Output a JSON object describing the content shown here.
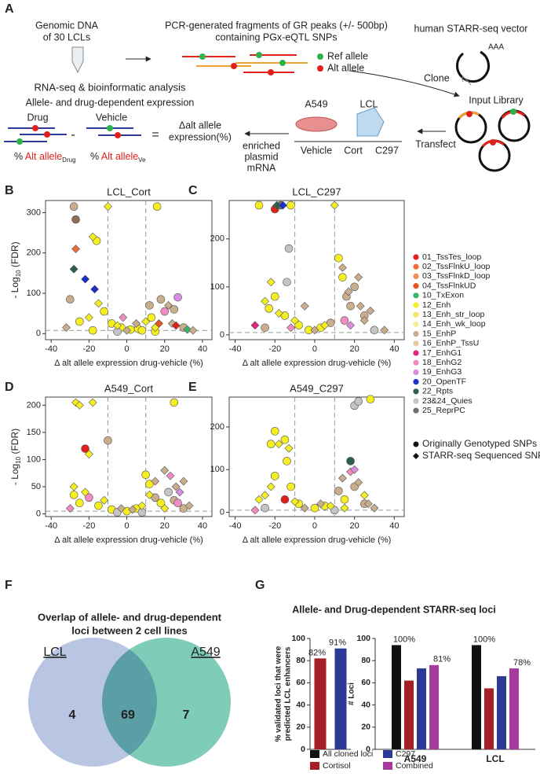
{
  "panel_a": {
    "label": "A",
    "dna": [
      "Genomic DNA",
      "of 30 LCLs"
    ],
    "pcr": [
      "PCR-generated fragments of GR peaks (+/- 500bp)",
      "containing PGx-eQTL SNPs"
    ],
    "vector": "human STARR-seq vector",
    "polya": "AAA",
    "ref": "Ref allele",
    "alt": "Alt allele",
    "clone": "Clone",
    "input": "Input Library",
    "transfect": "Transfect",
    "rnaseq": "RNA-seq & bioinformatic analysis",
    "allele_expr": "Allele- and drug-dependent expression",
    "drug": "Drug",
    "vehicle": "Vehicle",
    "minus": "-",
    "equals": "=",
    "pct": "%",
    "alt_word": "Alt allele",
    "sub_drug": "Drug",
    "sub_ve": "Ve",
    "delta": [
      "Δalt allele",
      "expression(%)"
    ],
    "enriched": [
      "enriched",
      "plasmid",
      "mRNA"
    ],
    "cells": [
      "A549",
      "LCL"
    ],
    "conditions": [
      "Vehicle",
      "Cort",
      "C297"
    ]
  },
  "state_legend": [
    {
      "name": "01_TssTes_loop",
      "color": "#e0201b"
    },
    {
      "name": "02_TssFlnkU_loop",
      "color": "#f26b3a"
    },
    {
      "name": "03_TssFlnkD_loop",
      "color": "#f28c5a"
    },
    {
      "name": "04_TssFlnkUD",
      "color": "#e8521e"
    },
    {
      "name": "10_TxExon",
      "color": "#3cb371"
    },
    {
      "name": "12_Enh",
      "color": "#f5ef22"
    },
    {
      "name": "13_Enh_str_loop",
      "color": "#f5e663"
    },
    {
      "name": "14_Enh_wk_loop",
      "color": "#f8ec9a"
    },
    {
      "name": "15_EnhP",
      "color": "#c9ad8c"
    },
    {
      "name": "16_EnhP_TssU",
      "color": "#e6c9a0"
    },
    {
      "name": "17_EnhG1",
      "color": "#e2247b"
    },
    {
      "name": "18_EnhG2",
      "color": "#f08cc0"
    },
    {
      "name": "19_EnhG3",
      "color": "#d98ce0"
    },
    {
      "name": "20_OpenTF",
      "color": "#1a2fcc"
    },
    {
      "name": "22_Rpts",
      "color": "#2e5e4e"
    },
    {
      "name": "23&24_Quies",
      "color": "#c4c4c4"
    },
    {
      "name": "25_ReprPC",
      "color": "#707070"
    }
  ],
  "marker_legend": [
    {
      "name": "Originally Genotyped SNPs",
      "marker": "circle"
    },
    {
      "name": "STARR-seq Sequenced SNPs",
      "marker": "diamond"
    }
  ],
  "chart_data": [
    {
      "type": "scatter",
      "panel": "B",
      "title": "LCL_Cort",
      "ylabel": [
        "- Log",
        "10",
        " (FDR)"
      ],
      "xlabel": "Δ alt allele expression drug-vehicle (%)",
      "xlim": [
        -43,
        45
      ],
      "xticks": [
        -40,
        -20,
        0,
        20,
        40
      ],
      "ylim": [
        -15,
        330
      ],
      "yticks": [
        0,
        100,
        200,
        300
      ],
      "ref_x": [
        -10,
        10
      ],
      "ref_y": 8,
      "series": [
        {
          "marker": "circle",
          "x": [
            -28,
            -27,
            16,
            -16,
            -30,
            -25,
            -12,
            -8,
            -3,
            2,
            6,
            12,
            13,
            18,
            20,
            25,
            27,
            8,
            -18,
            30,
            -5,
            15
          ],
          "values": [
            315,
            283,
            315,
            230,
            85,
            30,
            55,
            25,
            15,
            10,
            12,
            70,
            40,
            85,
            55,
            60,
            90,
            8,
            8,
            15,
            5,
            5
          ],
          "colors": [
            "#c9ad8c",
            "#8b6f5a",
            "#f5ef22",
            "#f5ef22",
            "#c9ad8c",
            "#f5ef22",
            "#f5ef22",
            "#f5ef22",
            "#f5ef22",
            "#f5ef22",
            "#f5ef22",
            "#c9ad8c",
            "#f5ef22",
            "#c9ad8c",
            "#f08cc0",
            "#c9ad8c",
            "#d98ce0",
            "#f5ef22",
            "#f5ef22",
            "#c9ad8c",
            "#c4c4c4",
            "#f5ef22"
          ]
        },
        {
          "marker": "diamond",
          "x": [
            -10,
            -27,
            -28,
            -22,
            -17,
            -18,
            -15,
            -20,
            -5,
            0,
            5,
            10,
            15,
            17,
            22,
            24,
            26,
            32,
            -32,
            -2,
            35
          ],
          "values": [
            315,
            210,
            160,
            135,
            110,
            240,
            75,
            40,
            20,
            8,
            25,
            30,
            15,
            25,
            70,
            25,
            20,
            10,
            15,
            40,
            8
          ],
          "colors": [
            "#f5ef22",
            "#f26b3a",
            "#2e5e4e",
            "#1a2fcc",
            "#1a2fcc",
            "#f5ef22",
            "#f5ef22",
            "#f5ef22",
            "#f5ef22",
            "#c9ad8c",
            "#c9ad8c",
            "#f5ef22",
            "#f5ef22",
            "#e8521e",
            "#c9ad8c",
            "#c9ad8c",
            "#e0201b",
            "#3cb371",
            "#c9ad8c",
            "#f08cc0",
            "#c9ad8c"
          ]
        }
      ]
    },
    {
      "type": "scatter",
      "panel": "C",
      "title": "LCL_C297",
      "xlabel": "Δ alt allele expression drug-vehicle (%)",
      "xlim": [
        -43,
        45
      ],
      "xticks": [
        -40,
        -20,
        0,
        20,
        40
      ],
      "ylim": [
        -10,
        280
      ],
      "yticks": [
        0,
        100,
        200
      ],
      "ref_x": [
        -10,
        10
      ],
      "ref_y": 5,
      "series": [
        {
          "marker": "circle",
          "x": [
            -28,
            -20,
            -17,
            -12,
            -13,
            -14,
            -20,
            -23,
            -15,
            -8,
            -3,
            3,
            8,
            12,
            14,
            16,
            18,
            20,
            25,
            15,
            -25,
            30
          ],
          "values": [
            270,
            262,
            270,
            270,
            180,
            110,
            80,
            55,
            40,
            20,
            10,
            15,
            25,
            160,
            120,
            80,
            60,
            100,
            40,
            30,
            15,
            10
          ],
          "colors": [
            "#f5ef22",
            "#e0201b",
            "#707070",
            "#f5ef22",
            "#c4c4c4",
            "#c4c4c4",
            "#f5ef22",
            "#f5ef22",
            "#f5ef22",
            "#f5ef22",
            "#f5ef22",
            "#f5ef22",
            "#c9ad8c",
            "#f5ef22",
            "#f5ef22",
            "#c9ad8c",
            "#c9ad8c",
            "#c9ad8c",
            "#c9ad8c",
            "#f08cc0",
            "#c9ad8c",
            "#c4c4c4"
          ]
        },
        {
          "marker": "diamond",
          "x": [
            -19,
            -16,
            10,
            -22,
            -25,
            -18,
            -10,
            -5,
            0,
            5,
            14,
            17,
            22,
            23,
            25,
            18,
            -30,
            35,
            28,
            -12
          ],
          "values": [
            270,
            270,
            270,
            110,
            70,
            45,
            30,
            60,
            10,
            20,
            140,
            90,
            120,
            60,
            30,
            20,
            20,
            10,
            50,
            15
          ],
          "colors": [
            "#2e5e4e",
            "#1a2fcc",
            "#f5ef22",
            "#f5ef22",
            "#f5ef22",
            "#f5ef22",
            "#f5ef22",
            "#c9ad8c",
            "#c9ad8c",
            "#f5ef22",
            "#c9ad8c",
            "#c9ad8c",
            "#c9ad8c",
            "#c9ad8c",
            "#c9ad8c",
            "#d98ce0",
            "#e2247b",
            "#c9ad8c",
            "#c9ad8c",
            "#f08cc0"
          ]
        }
      ]
    },
    {
      "type": "scatter",
      "panel": "D",
      "title": "A549_Cort",
      "ylabel": [
        "- Log",
        "10",
        " (FDR)"
      ],
      "xlabel": "Δ alt allele expression drug-vehicle (%)",
      "xlim": [
        -43,
        45
      ],
      "xticks": [
        -40,
        -20,
        0,
        20,
        40
      ],
      "ylim": [
        -5,
        215
      ],
      "yticks": [
        0,
        50,
        100,
        150,
        200
      ],
      "ref_x": [
        -10,
        10
      ],
      "ref_y": 5,
      "series": [
        {
          "marker": "circle",
          "x": [
            -22,
            -10,
            25,
            -28,
            -25,
            -20,
            -15,
            -8,
            0,
            5,
            10,
            12,
            15,
            18,
            22,
            25,
            27,
            -5,
            30,
            8
          ],
          "values": [
            120,
            135,
            205,
            35,
            20,
            30,
            15,
            8,
            5,
            10,
            72,
            55,
            30,
            20,
            40,
            25,
            20,
            3,
            10,
            3
          ],
          "colors": [
            "#e0201b",
            "#c9ad8c",
            "#f5ef22",
            "#f5ef22",
            "#f5ef22",
            "#f08cc0",
            "#f5ef22",
            "#f5ef22",
            "#f5ef22",
            "#f5ef22",
            "#f5ef22",
            "#f5ef22",
            "#c9ad8c",
            "#f5ef22",
            "#c4c4c4",
            "#c9ad8c",
            "#f08cc0",
            "#c4c4c4",
            "#c9ad8c",
            "#c4c4c4"
          ]
        },
        {
          "marker": "diamond",
          "x": [
            -27,
            -25,
            -18,
            -20,
            -28,
            -22,
            -12,
            -3,
            3,
            8,
            12,
            15,
            20,
            23,
            26,
            28,
            30,
            20,
            -30,
            33
          ],
          "values": [
            205,
            200,
            205,
            110,
            50,
            40,
            25,
            10,
            8,
            15,
            35,
            60,
            80,
            70,
            50,
            40,
            60,
            10,
            10,
            15
          ],
          "colors": [
            "#f5ef22",
            "#f5ef22",
            "#f5ef22",
            "#f5ef22",
            "#f5ef22",
            "#f5ef22",
            "#f5ef22",
            "#c9ad8c",
            "#c9ad8c",
            "#f5ef22",
            "#f5ef22",
            "#c9ad8c",
            "#c9ad8c",
            "#f08cc0",
            "#c9ad8c",
            "#d98ce0",
            "#c9ad8c",
            "#f5ef22",
            "#f08cc0",
            "#c9ad8c"
          ]
        }
      ]
    },
    {
      "type": "scatter",
      "panel": "E",
      "title": "A549_C297",
      "xlabel": "Δ alt allele expression drug-vehicle (%)",
      "xlim": [
        -43,
        45
      ],
      "xticks": [
        -40,
        -20,
        0,
        20,
        40
      ],
      "ylim": [
        -10,
        270
      ],
      "yticks": [
        0,
        100,
        200
      ],
      "ref_x": [
        -10,
        10
      ],
      "ref_y": 5,
      "series": [
        {
          "marker": "circle",
          "x": [
            -20,
            -22,
            -15,
            -14,
            -20,
            -12,
            -15,
            -8,
            0,
            5,
            12,
            15,
            18,
            20,
            22,
            28,
            20,
            25,
            -25,
            10
          ],
          "values": [
            190,
            160,
            170,
            120,
            85,
            60,
            30,
            20,
            10,
            15,
            50,
            30,
            120,
            250,
            260,
            265,
            60,
            20,
            10,
            5
          ],
          "colors": [
            "#f5ef22",
            "#f5ef22",
            "#f5ef22",
            "#f5ef22",
            "#f5ef22",
            "#f5ef22",
            "#e0201b",
            "#f5ef22",
            "#f5ef22",
            "#f5ef22",
            "#c9ad8c",
            "#f5ef22",
            "#2e5e4e",
            "#c4c4c4",
            "#c4c4c4",
            "#f5ef22",
            "#c9ad8c",
            "#c9ad8c",
            "#c4c4c4",
            "#c4c4c4"
          ]
        },
        {
          "marker": "diamond",
          "x": [
            -18,
            -13,
            -22,
            -25,
            -28,
            -10,
            -5,
            3,
            8,
            14,
            18,
            20,
            22,
            25,
            27,
            -30,
            30,
            15
          ],
          "values": [
            160,
            150,
            60,
            40,
            30,
            25,
            10,
            20,
            15,
            80,
            95,
            100,
            70,
            40,
            20,
            5,
            10,
            10
          ],
          "colors": [
            "#f5ef22",
            "#f5ef22",
            "#f5ef22",
            "#f5ef22",
            "#f5ef22",
            "#f5ef22",
            "#c9ad8c",
            "#c9ad8c",
            "#f5ef22",
            "#c9ad8c",
            "#f08cc0",
            "#d98ce0",
            "#c9ad8c",
            "#f5ef22",
            "#c9ad8c",
            "#f08cc0",
            "#c9ad8c",
            "#f5ef22"
          ]
        }
      ]
    },
    {
      "type": "venn",
      "panel": "F",
      "title": [
        "Overlap of allele- and drug-dependent",
        "loci between 2 cell lines"
      ],
      "sets": [
        "LCL",
        "A549"
      ],
      "colors": [
        "#a8b8dc",
        "#5fbfa8"
      ],
      "values": [
        4,
        69,
        7
      ]
    },
    {
      "type": "bar",
      "panel": "G",
      "title": "Allele- and Drug-dependent STARR-seq loci",
      "ylabel": [
        "% validated loci that were",
        "predicted LCL enhancers"
      ],
      "categories": [
        null,
        null
      ],
      "values": [
        82,
        91
      ],
      "value_labels": [
        "82%",
        "91%"
      ],
      "colors": [
        "#a51f24",
        "#2c3a96"
      ],
      "ylim": [
        0,
        100
      ],
      "yticks": [
        0,
        20,
        40,
        60,
        80,
        100
      ]
    },
    {
      "type": "grouped_bar",
      "ylabel": [
        "# Loci"
      ],
      "categories": [
        "A549",
        "LCL"
      ],
      "ylim": [
        0,
        100
      ],
      "yticks": [
        0,
        20,
        40,
        60,
        80,
        100
      ],
      "series": [
        {
          "name": "All cloned loci",
          "color": "#111111",
          "values": [
            94,
            94
          ],
          "share_values": [
            100,
            100
          ],
          "share_labels": [
            "100%",
            "100%"
          ]
        },
        {
          "name": "Cortisol",
          "color": "#a51f24",
          "values": [
            62,
            55
          ]
        },
        {
          "name": "C297",
          "color": "#2c3a96",
          "values": [
            73,
            66
          ]
        },
        {
          "name": "Combined",
          "color": "#a83a9e",
          "values": [
            76,
            73
          ],
          "share_values": [
            81,
            78
          ],
          "share_labels": [
            "81%",
            "78%"
          ]
        }
      ]
    }
  ]
}
